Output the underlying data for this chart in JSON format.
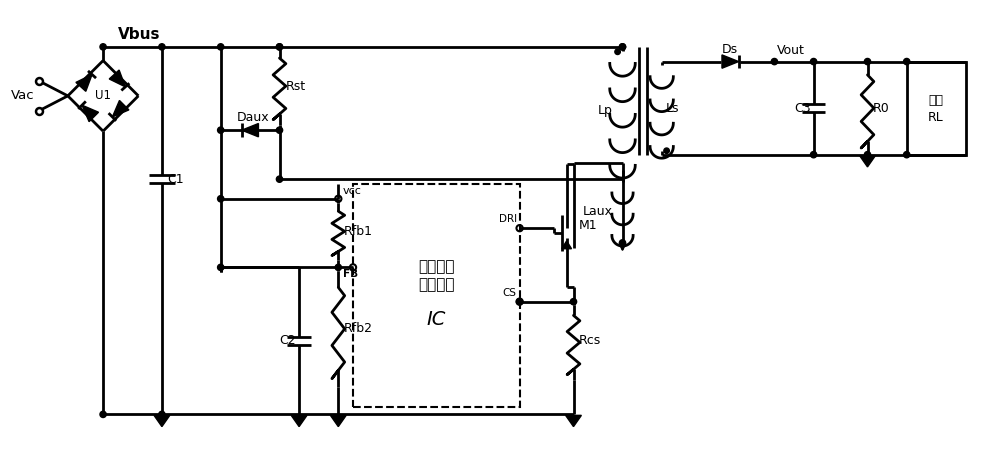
{
  "background": "#ffffff",
  "line_color": "#000000",
  "line_width": 2.0,
  "fig_width": 10.0,
  "fig_height": 4.73,
  "dpi": 100,
  "ic_text1": "开关电源\n控制电路",
  "ic_text2": "IC",
  "rl_text1": "负载",
  "rl_text2": "RL",
  "vbus": "Vbus",
  "vac": "Vac",
  "vout": "Vout",
  "vcc": "VCC",
  "fb": "FB",
  "dri": "DRI",
  "cs": "CS",
  "m1": "M1",
  "u1": "U1",
  "c1": "C1",
  "c2": "C2",
  "c3": "C3",
  "rst": "Rst",
  "daux": "Daux",
  "rfb1": "Rfb1",
  "rfb2": "Rfb2",
  "lp": "Lp",
  "ls": "Ls",
  "laux": "Laux",
  "ds": "Ds",
  "r0": "R0",
  "rcs": "Rcs"
}
